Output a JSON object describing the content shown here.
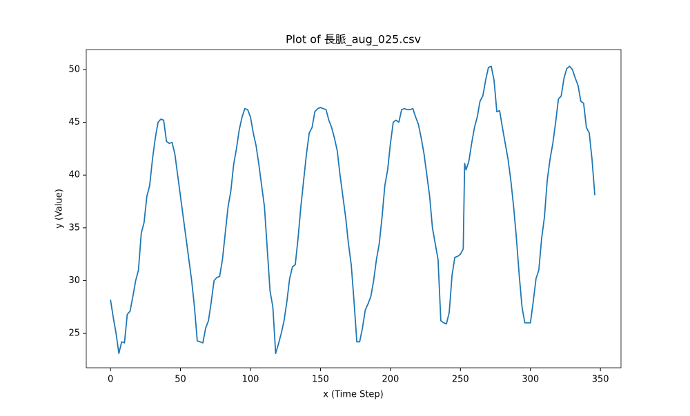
{
  "chart_data": {
    "type": "line",
    "title": "Plot of 長脈_aug_025.csv",
    "x_label": "x (Time Step)",
    "y_label": "y (Value)",
    "x": [
      0,
      2,
      4,
      6,
      8,
      10,
      12,
      14,
      16,
      18,
      20,
      22,
      24,
      26,
      28,
      30,
      32,
      34,
      36,
      38,
      40,
      42,
      44,
      46,
      48,
      50,
      52,
      54,
      56,
      58,
      60,
      62,
      64,
      66,
      68,
      70,
      72,
      74,
      76,
      78,
      80,
      82,
      84,
      86,
      88,
      90,
      92,
      94,
      96,
      98,
      100,
      102,
      104,
      106,
      108,
      110,
      112,
      114,
      116,
      118,
      120,
      122,
      124,
      126,
      128,
      130,
      132,
      134,
      136,
      138,
      140,
      142,
      144,
      146,
      148,
      150,
      152,
      154,
      156,
      158,
      160,
      162,
      164,
      166,
      168,
      170,
      172,
      174,
      176,
      178,
      180,
      182,
      184,
      186,
      188,
      190,
      192,
      194,
      196,
      198,
      200,
      202,
      204,
      206,
      208,
      210,
      212,
      214,
      216,
      218,
      220,
      222,
      224,
      226,
      228,
      230,
      232,
      234,
      236,
      238,
      240,
      242,
      244,
      246,
      248,
      250,
      252,
      253,
      254,
      256,
      258,
      260,
      262,
      264,
      266,
      268,
      270,
      272,
      274,
      276,
      278,
      280,
      282,
      284,
      286,
      288,
      290,
      292,
      294,
      296,
      298,
      300,
      302,
      304,
      306,
      308,
      310,
      312,
      314,
      316,
      318,
      320,
      322,
      324,
      326,
      328,
      330,
      332,
      334,
      336,
      338,
      340,
      342,
      344,
      346
    ],
    "series": [
      {
        "name": "y",
        "color": "#1f77b4",
        "values": [
          28.2,
          26.5,
          25,
          23.1,
          24.2,
          24.1,
          26.8,
          27.1,
          28.5,
          30,
          31,
          34.5,
          35.5,
          38,
          39,
          41.5,
          43.5,
          45,
          45.3,
          45.2,
          43.2,
          43,
          43.1,
          42,
          40,
          38,
          36,
          34,
          32,
          30,
          27.5,
          24.3,
          24.2,
          24.1,
          25.5,
          26.2,
          28,
          30,
          30.3,
          30.4,
          32,
          34.5,
          37,
          38.5,
          41,
          42.5,
          44.3,
          45.5,
          46.3,
          46.2,
          45.5,
          44,
          42.8,
          41,
          39,
          37,
          33,
          29,
          27.5,
          23.1,
          24,
          25,
          26.2,
          28,
          30.2,
          31.3,
          31.5,
          34,
          37,
          39.5,
          42,
          44,
          44.5,
          46,
          46.3,
          46.4,
          46.3,
          46.2,
          45.2,
          44.5,
          43.5,
          42.3,
          40,
          38,
          36,
          33.5,
          31.5,
          28,
          24.2,
          24.2,
          25.5,
          27.2,
          27.8,
          28.5,
          30,
          32,
          33.5,
          36,
          39,
          40.5,
          43,
          45,
          45.2,
          45,
          46.2,
          46.3,
          46.2,
          46.2,
          46.3,
          45.5,
          44.8,
          43.5,
          42,
          40,
          38,
          35,
          33.5,
          32,
          26.2,
          26,
          25.9,
          27,
          30.5,
          32.2,
          32.3,
          32.5,
          33,
          41.1,
          40.5,
          41.3,
          43,
          44.5,
          45.5,
          47,
          47.5,
          49,
          50.2,
          50.3,
          49,
          46,
          46.1,
          44.5,
          43,
          41.5,
          39.5,
          37,
          34,
          30.5,
          27.5,
          26,
          26,
          26,
          28,
          30.2,
          31,
          34,
          36,
          39.5,
          41.5,
          43,
          45,
          47.2,
          47.5,
          49.2,
          50.1,
          50.3,
          50,
          49.2,
          48.5,
          47,
          46.8,
          44.5,
          44,
          41.5,
          38.1
        ]
      }
    ],
    "xlim": [
      -17.3,
      364.7
    ],
    "xticks": [
      0,
      50,
      100,
      150,
      200,
      250,
      300,
      350
    ],
    "ylim": [
      21.74,
      51.89
    ],
    "yticks": [
      25,
      30,
      35,
      40,
      45,
      50
    ]
  }
}
